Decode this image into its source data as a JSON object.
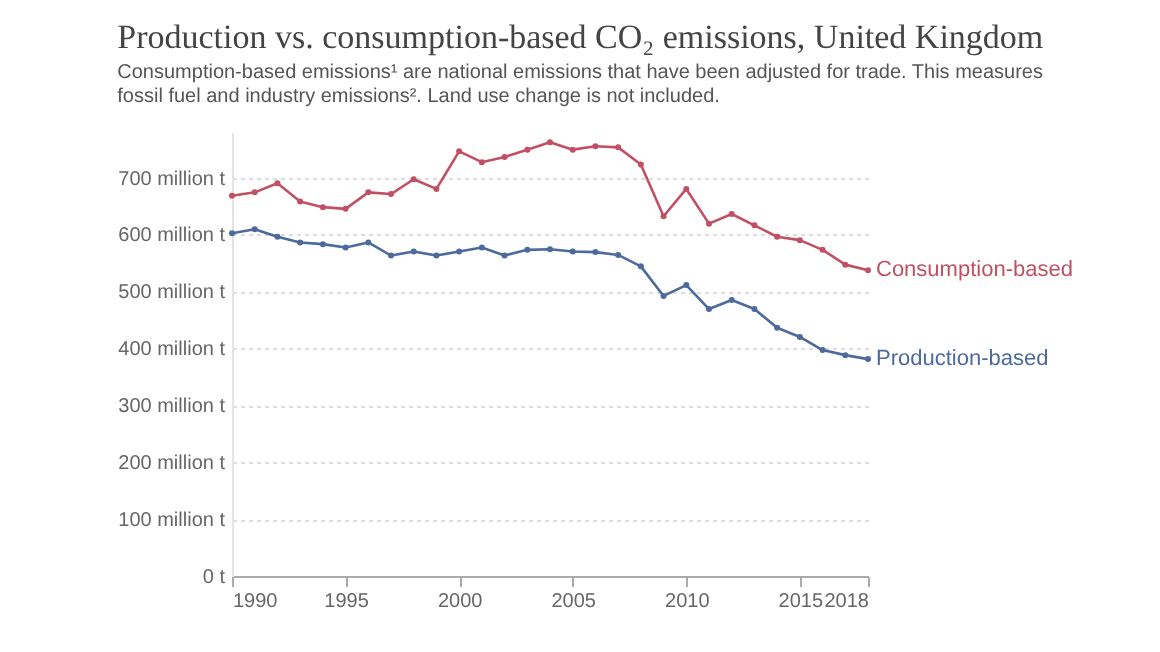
{
  "chart_data": {
    "type": "line",
    "title": "Production vs. consumption-based CO₂ emissions, United Kingdom",
    "subtitle": "Consumption-based emissions¹ are national emissions that have been adjusted for trade. This measures fossil fuel and industry emissions². Land use change is not included.",
    "x": [
      1990,
      1991,
      1992,
      1993,
      1994,
      1995,
      1996,
      1997,
      1998,
      1999,
      2000,
      2001,
      2002,
      2003,
      2004,
      2005,
      2006,
      2007,
      2008,
      2009,
      2010,
      2011,
      2012,
      2013,
      2014,
      2015,
      2016,
      2017,
      2018
    ],
    "series": [
      {
        "name": "Consumption-based",
        "color": "#c15065",
        "values": [
          668,
          674,
          690,
          658,
          648,
          645,
          674,
          671,
          697,
          680,
          746,
          727,
          736,
          749,
          762,
          749,
          755,
          753,
          723,
          632,
          680,
          619,
          636,
          616,
          596,
          590,
          573,
          547,
          537
        ]
      },
      {
        "name": "Production-based",
        "color": "#4c6a9c",
        "values": [
          602,
          609,
          596,
          586,
          583,
          577,
          586,
          563,
          570,
          563,
          570,
          577,
          563,
          573,
          574,
          570,
          569,
          564,
          544,
          492,
          511,
          469,
          485,
          469,
          436,
          420,
          397,
          388,
          381
        ]
      }
    ],
    "xlim": [
      1990,
      2018
    ],
    "xticks": [
      1990,
      1995,
      2000,
      2005,
      2010,
      2015,
      2018
    ],
    "ylim": [
      0,
      780
    ],
    "yticks": [
      {
        "value": 0,
        "label": "0 t"
      },
      {
        "value": 100,
        "label": "100 million t"
      },
      {
        "value": 200,
        "label": "200 million t"
      },
      {
        "value": 300,
        "label": "300 million t"
      },
      {
        "value": 400,
        "label": "400 million t"
      },
      {
        "value": 500,
        "label": "500 million t"
      },
      {
        "value": 600,
        "label": "600 million t"
      },
      {
        "value": 700,
        "label": "700 million t"
      }
    ],
    "grid": "y",
    "marker": "circle",
    "line_style": "solid"
  }
}
